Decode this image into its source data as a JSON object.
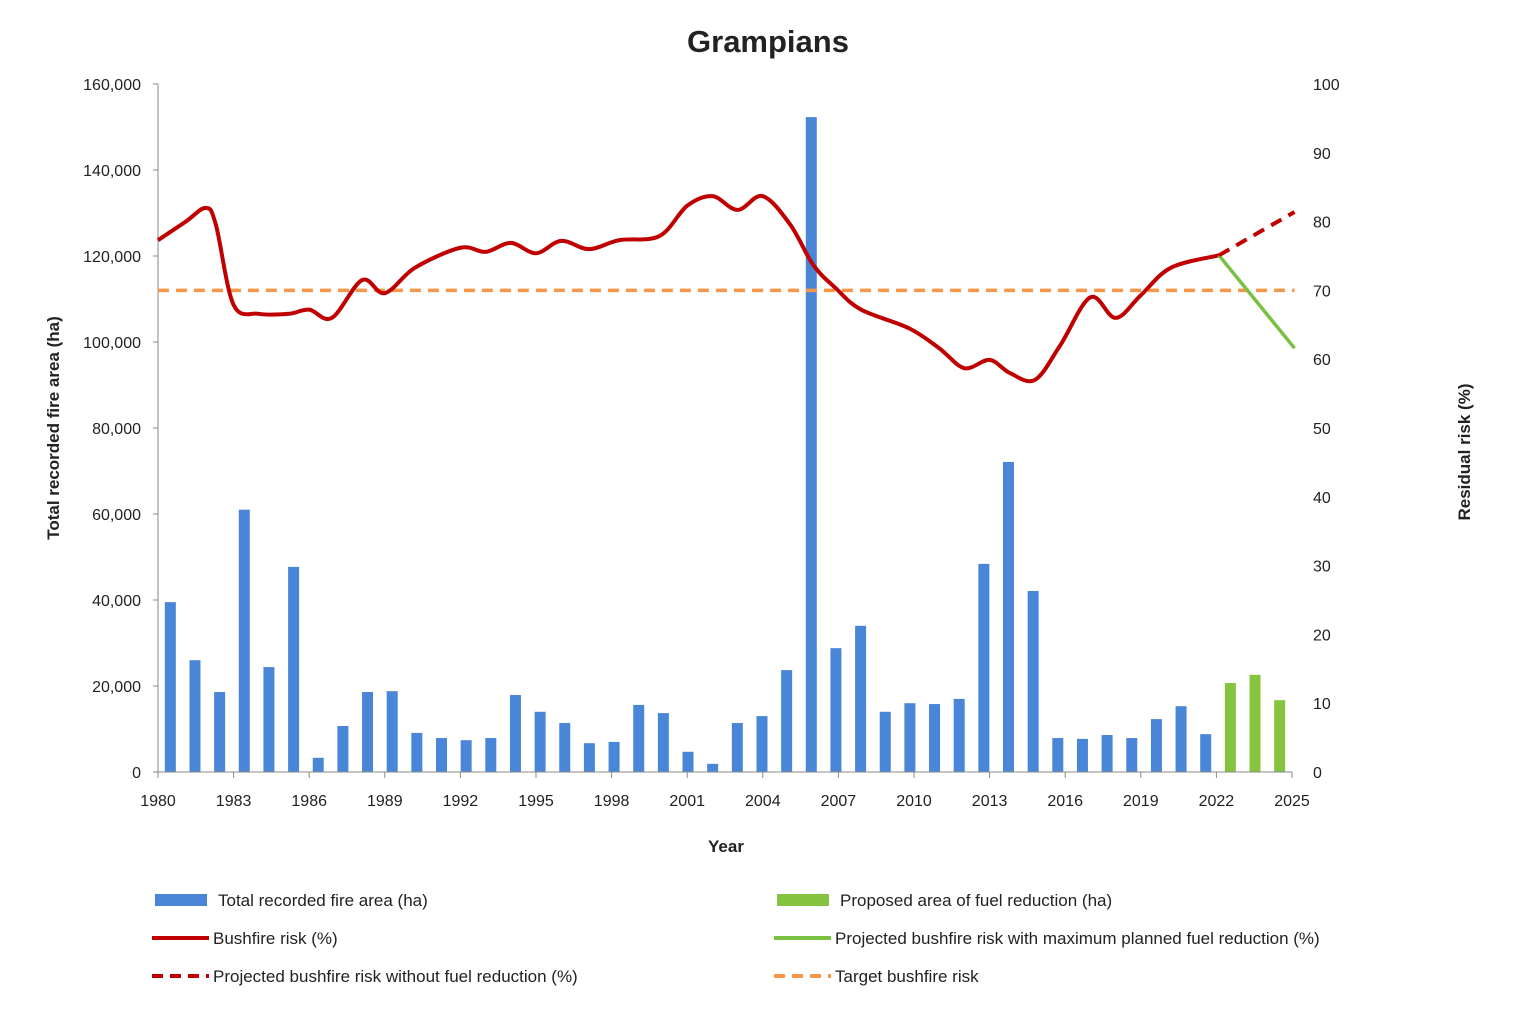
{
  "chart_data": {
    "type": "bar+line",
    "title": "Grampians",
    "xlabel": "Year",
    "ylabel_left": "Total recorded fire area (ha)",
    "ylabel_right": "Residual risk (%)",
    "xlim": [
      1980,
      2025
    ],
    "x_ticks": [
      1980,
      1983,
      1986,
      1989,
      1992,
      1995,
      1998,
      2001,
      2004,
      2007,
      2010,
      2013,
      2016,
      2019,
      2022,
      2025
    ],
    "ylim_left": [
      0,
      160000
    ],
    "y_ticks_left": [
      "0",
      "20,000",
      "40,000",
      "60,000",
      "80,000",
      "100,000",
      "120,000",
      "140,000",
      "160,000"
    ],
    "ylim_right": [
      0,
      100
    ],
    "y_ticks_right": [
      "0",
      "10",
      "20",
      "30",
      "40",
      "50",
      "60",
      "70",
      "80",
      "90",
      "100"
    ],
    "grid": false,
    "legend_position": "bottom",
    "colors": {
      "fire_area": "#4a86d8",
      "fuel_reduction": "#86c440",
      "risk": "#c00000",
      "projected_without": "#c00000",
      "projected_with": "#7ac143",
      "target": "#f79646"
    },
    "bar_series": [
      {
        "name": "Total recorded fire area (ha)",
        "color_key": "fire_area",
        "years": [
          1980,
          1981,
          1982,
          1983,
          1984,
          1985,
          1986,
          1987,
          1988,
          1989,
          1990,
          1991,
          1992,
          1993,
          1994,
          1995,
          1996,
          1997,
          1998,
          1999,
          2000,
          2001,
          2002,
          2003,
          2004,
          2005,
          2006,
          2007,
          2008,
          2009,
          2010,
          2011,
          2012,
          2013,
          2014,
          2015,
          2016,
          2017,
          2018,
          2019,
          2020,
          2021,
          2022
        ],
        "values": [
          39500,
          26000,
          18600,
          61000,
          24400,
          47700,
          3300,
          10700,
          18600,
          18800,
          9100,
          7900,
          7400,
          7900,
          17900,
          14000,
          11400,
          6700,
          7000,
          15600,
          13700,
          4700,
          1900,
          11400,
          13000,
          23700,
          152300,
          28800,
          34000,
          14000,
          16000,
          15800,
          17000,
          48400,
          72100,
          42100,
          7900,
          7700,
          8600,
          7900,
          12300,
          15300,
          8800
        ]
      },
      {
        "name": "Proposed area of fuel reduction (ha)",
        "color_key": "fuel_reduction",
        "years": [
          2023,
          2024,
          2025
        ],
        "values": [
          20700,
          22600,
          16700
        ]
      }
    ],
    "line_series": [
      {
        "name": "Bushfire risk (%)",
        "color_key": "risk",
        "style": "solid",
        "x": [
          1980,
          1981.1,
          1981.9,
          1982.3,
          1983,
          1984,
          1985.2,
          1986,
          1986.9,
          1988.1,
          1989,
          1990.2,
          1992,
          1993,
          1994,
          1995,
          1996,
          1997.1,
          1998.3,
          1999.9,
          2001,
          2002,
          2003,
          2004,
          2005.1,
          2006,
          2006.9,
          2007.9,
          2009.8,
          2011,
          2012,
          2013,
          2013.8,
          2014.8,
          2015.8,
          2017,
          2018,
          2019,
          2020.2,
          2022.1
        ],
        "y": [
          77.3,
          80,
          82,
          79.5,
          67.9,
          66.6,
          66.6,
          67.2,
          66,
          71.5,
          69.6,
          73.3,
          76.2,
          75.6,
          76.9,
          75.4,
          77.2,
          76,
          77.3,
          77.9,
          82.3,
          83.7,
          81.7,
          83.7,
          79.5,
          73.7,
          70.3,
          67.2,
          64.5,
          61.6,
          58.7,
          59.9,
          58,
          57,
          62,
          69,
          66,
          69.3,
          73.3,
          75.1
        ]
      },
      {
        "name": "Projected bushfire risk with maximum planned fuel reduction (%)",
        "color_key": "projected_with",
        "style": "solid",
        "x": [
          2022.1,
          2025.1
        ],
        "y": [
          75.1,
          61.6
        ]
      },
      {
        "name": "Projected bushfire risk without fuel reduction (%)",
        "color_key": "projected_without",
        "style": "dashed",
        "x": [
          2022.1,
          2025.1
        ],
        "y": [
          75.1,
          81.4
        ]
      },
      {
        "name": "Target bushfire risk",
        "color_key": "target",
        "style": "dashed",
        "x": [
          1980,
          2025.1
        ],
        "y": [
          70,
          70
        ]
      }
    ],
    "legend": [
      {
        "label": "Total recorded fire area (ha)",
        "kind": "box",
        "color_key": "fire_area"
      },
      {
        "label": "Proposed area of fuel reduction (ha)",
        "kind": "box",
        "color_key": "fuel_reduction"
      },
      {
        "label": "Bushfire risk (%)",
        "kind": "line",
        "color_key": "risk"
      },
      {
        "label": "Projected bushfire risk with maximum planned fuel reduction (%)",
        "kind": "line",
        "color_key": "projected_with"
      },
      {
        "label": "Projected bushfire risk without fuel reduction (%)",
        "kind": "dash",
        "color_key": "projected_without"
      },
      {
        "label": "Target bushfire risk",
        "kind": "dash",
        "color_key": "target"
      }
    ]
  }
}
